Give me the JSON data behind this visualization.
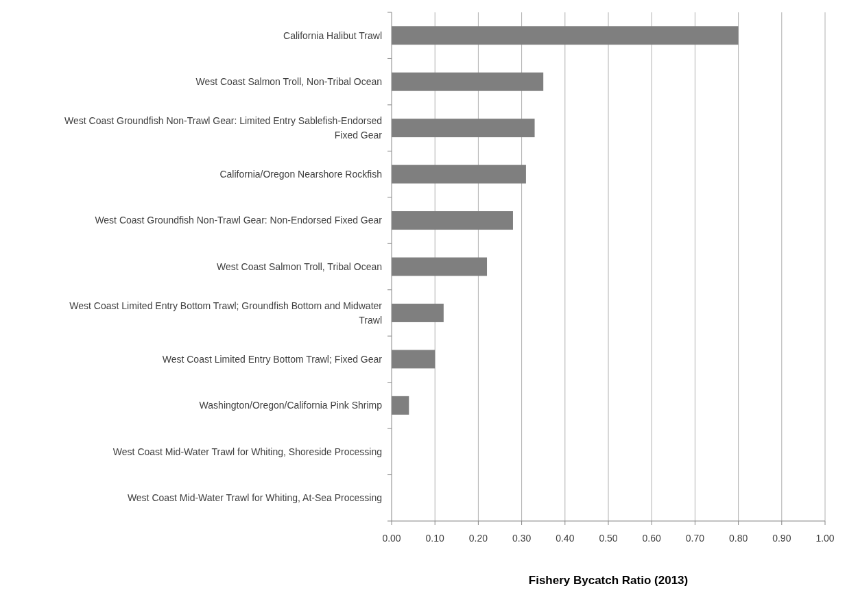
{
  "chart_data": {
    "type": "bar",
    "orientation": "horizontal",
    "xlabel": "Fishery Bycatch Ratio (2013)",
    "categories": [
      "California Halibut Trawl",
      "West Coast Salmon Troll, Non-Tribal Ocean",
      "West Coast Groundfish Non-Trawl Gear: Limited Entry Sablefish-Endorsed Fixed Gear",
      "California/Oregon Nearshore Rockfish",
      "West Coast Groundfish Non-Trawl Gear: Non-Endorsed Fixed Gear",
      "West Coast Salmon Troll, Tribal Ocean",
      "West Coast Limited Entry Bottom Trawl; Groundfish Bottom and Midwater Trawl",
      "West Coast Limited Entry Bottom Trawl; Fixed Gear",
      "Washington/Oregon/California Pink Shrimp",
      "West Coast Mid-Water Trawl for Whiting, Shoreside Processing",
      "West Coast Mid-Water Trawl for Whiting, At-Sea Processing"
    ],
    "values": [
      0.8,
      0.35,
      0.33,
      0.31,
      0.28,
      0.22,
      0.12,
      0.1,
      0.04,
      0,
      0
    ],
    "color": "#7f7f7f",
    "xlim": [
      0,
      1
    ],
    "xticks": [
      {
        "value": 0,
        "label": "0.00"
      },
      {
        "value": 0.1,
        "label": "0.10"
      },
      {
        "value": 0.2,
        "label": "0.20"
      },
      {
        "value": 0.3,
        "label": "0.30"
      },
      {
        "value": 0.4,
        "label": "0.40"
      },
      {
        "value": 0.5,
        "label": "0.50"
      },
      {
        "value": 0.6,
        "label": "0.60"
      },
      {
        "value": 0.7,
        "label": "0.70"
      },
      {
        "value": 0.8,
        "label": "0.80"
      },
      {
        "value": 0.9,
        "label": "0.90"
      },
      {
        "value": 1,
        "label": "1.00"
      }
    ],
    "grid": "x"
  }
}
